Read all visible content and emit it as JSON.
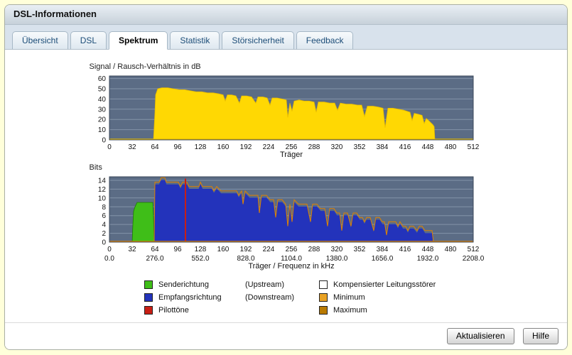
{
  "window": {
    "title": "DSL-Informationen"
  },
  "tabs": [
    {
      "label": "Übersicht",
      "active": false
    },
    {
      "label": "DSL",
      "active": false
    },
    {
      "label": "Spektrum",
      "active": true
    },
    {
      "label": "Statistik",
      "active": false
    },
    {
      "label": "Störsicherheit",
      "active": false
    },
    {
      "label": "Feedback",
      "active": false
    }
  ],
  "buttons": {
    "refresh": "Aktualisieren",
    "help": "Hilfe"
  },
  "legend": {
    "left": [
      {
        "color": "#3fbe18",
        "label": "Senderichtung",
        "sub": "(Upstream)"
      },
      {
        "color": "#2333bb",
        "label": "Empfangsrichtung",
        "sub": "(Downstream)"
      },
      {
        "color": "#c81e14",
        "label": "Pilottöne",
        "sub": ""
      }
    ],
    "right": [
      {
        "color": "#ffffff",
        "label": "Kompensierter Leitungsstörer"
      },
      {
        "color": "#e9a224",
        "label": "Minimum"
      },
      {
        "color": "#b97a00",
        "label": "Maximum"
      }
    ]
  },
  "colors": {
    "plot_background": "#5b6c85",
    "grid": "#8393a9",
    "snr_fill": "#ffd803",
    "snr_baseline": "#e8bb00",
    "upstream_fill": "#3fbe18",
    "downstream_fill": "#2333bb",
    "minmax_line": "#e08200",
    "pilot": "#c81e14"
  },
  "chart_data": [
    {
      "type": "area",
      "title": "Signal / Rausch-Verhältnis in dB",
      "xlabel": "Träger",
      "xlim": [
        0,
        512
      ],
      "xticks": [
        0,
        32,
        64,
        96,
        128,
        160,
        192,
        224,
        256,
        288,
        320,
        352,
        384,
        416,
        448,
        480,
        512
      ],
      "ylim": [
        0,
        60
      ],
      "yticks": [
        0,
        10,
        20,
        30,
        40,
        50,
        60
      ],
      "grid": "horizontal",
      "series": [
        {
          "name": "Signal/Rausch-Verhältnis",
          "color": "#ffd803",
          "stroke": "#e8bb00",
          "points": [
            [
              0,
              0
            ],
            [
              62,
              0
            ],
            [
              64,
              26
            ],
            [
              65,
              44
            ],
            [
              68,
              50
            ],
            [
              74,
              51
            ],
            [
              82,
              51
            ],
            [
              90,
              50
            ],
            [
              98,
              49
            ],
            [
              106,
              49
            ],
            [
              114,
              48
            ],
            [
              122,
              47
            ],
            [
              130,
              47
            ],
            [
              138,
              46
            ],
            [
              146,
              46
            ],
            [
              154,
              45
            ],
            [
              160,
              44
            ],
            [
              163,
              38
            ],
            [
              166,
              44
            ],
            [
              172,
              44
            ],
            [
              178,
              43
            ],
            [
              183,
              36
            ],
            [
              186,
              43
            ],
            [
              193,
              43
            ],
            [
              200,
              42
            ],
            [
              206,
              36
            ],
            [
              209,
              42
            ],
            [
              216,
              42
            ],
            [
              222,
              41
            ],
            [
              226,
              34
            ],
            [
              229,
              41
            ],
            [
              236,
              41
            ],
            [
              243,
              40
            ],
            [
              249,
              39
            ],
            [
              251,
              22
            ],
            [
              254,
              36
            ],
            [
              257,
              28
            ],
            [
              260,
              38
            ],
            [
              267,
              39
            ],
            [
              274,
              38
            ],
            [
              281,
              38
            ],
            [
              288,
              37
            ],
            [
              291,
              27
            ],
            [
              294,
              37
            ],
            [
              302,
              37
            ],
            [
              310,
              36
            ],
            [
              317,
              36
            ],
            [
              321,
              29
            ],
            [
              325,
              36
            ],
            [
              333,
              35
            ],
            [
              341,
              35
            ],
            [
              349,
              34
            ],
            [
              355,
              34
            ],
            [
              359,
              23
            ],
            [
              363,
              33
            ],
            [
              371,
              33
            ],
            [
              379,
              32
            ],
            [
              385,
              31
            ],
            [
              388,
              12
            ],
            [
              392,
              31
            ],
            [
              399,
              31
            ],
            [
              407,
              30
            ],
            [
              414,
              29
            ],
            [
              419,
              28
            ],
            [
              423,
              27
            ],
            [
              426,
              19
            ],
            [
              429,
              26
            ],
            [
              435,
              25
            ],
            [
              440,
              24
            ],
            [
              443,
              16
            ],
            [
              446,
              21
            ],
            [
              449,
              19
            ],
            [
              452,
              17
            ],
            [
              455,
              15
            ],
            [
              457,
              13
            ],
            [
              458,
              0
            ],
            [
              512,
              0
            ]
          ]
        }
      ]
    },
    {
      "type": "area",
      "title": "Bits",
      "xlabel": "Träger / Frequenz in kHz",
      "xlim": [
        0,
        512
      ],
      "xticks": [
        0,
        32,
        64,
        96,
        128,
        160,
        192,
        224,
        256,
        288,
        320,
        352,
        384,
        416,
        448,
        480,
        512
      ],
      "xticks2": [
        "0.0",
        "276.0",
        "552.0",
        "828.0",
        "1104.0",
        "1380.0",
        "1656.0",
        "1932.0",
        "2208.0"
      ],
      "ylim": [
        0,
        14
      ],
      "yticks": [
        0,
        2,
        4,
        6,
        8,
        10,
        12,
        14
      ],
      "grid": "horizontal",
      "series": [
        {
          "name": "Senderichtung (Upstream)",
          "color": "#3fbe18",
          "stroke": "#1e7a05",
          "points": [
            [
              32,
              0
            ],
            [
              33,
              4
            ],
            [
              34,
              7
            ],
            [
              36,
              8
            ],
            [
              39,
              9
            ],
            [
              45,
              9
            ],
            [
              52,
              9
            ],
            [
              58,
              9
            ],
            [
              61,
              9
            ],
            [
              62,
              6
            ],
            [
              63,
              0
            ]
          ]
        },
        {
          "name": "Empfangsrichtung (Downstream)",
          "color": "#2333bb",
          "stroke": "#2333bb",
          "points": [
            [
              0,
              0
            ],
            [
              63,
              0
            ],
            [
              64,
              13
            ],
            [
              70,
              13
            ],
            [
              73,
              14
            ],
            [
              78,
              14
            ],
            [
              80,
              13
            ],
            [
              90,
              13
            ],
            [
              97,
              13
            ],
            [
              100,
              12
            ],
            [
              103,
              13
            ],
            [
              109,
              13
            ],
            [
              112,
              12
            ],
            [
              120,
              12
            ],
            [
              126,
              12
            ],
            [
              128,
              13
            ],
            [
              131,
              12
            ],
            [
              138,
              12
            ],
            [
              144,
              12
            ],
            [
              147,
              11
            ],
            [
              151,
              12
            ],
            [
              157,
              11
            ],
            [
              165,
              11
            ],
            [
              172,
              11
            ],
            [
              179,
              11
            ],
            [
              182,
              10
            ],
            [
              186,
              11
            ],
            [
              188,
              8
            ],
            [
              191,
              11
            ],
            [
              197,
              10
            ],
            [
              203,
              10
            ],
            [
              209,
              10
            ],
            [
              211,
              6
            ],
            [
              214,
              10
            ],
            [
              221,
              10
            ],
            [
              226,
              9
            ],
            [
              231,
              9
            ],
            [
              234,
              5
            ],
            [
              237,
              9
            ],
            [
              243,
              9
            ],
            [
              248,
              8
            ],
            [
              251,
              3
            ],
            [
              254,
              8
            ],
            [
              257,
              4
            ],
            [
              260,
              9
            ],
            [
              266,
              8
            ],
            [
              272,
              8
            ],
            [
              278,
              8
            ],
            [
              283,
              4
            ],
            [
              286,
              8
            ],
            [
              292,
              8
            ],
            [
              297,
              7
            ],
            [
              303,
              7
            ],
            [
              307,
              3
            ],
            [
              310,
              7
            ],
            [
              316,
              7
            ],
            [
              320,
              6
            ],
            [
              324,
              6
            ],
            [
              327,
              2
            ],
            [
              330,
              6
            ],
            [
              335,
              6
            ],
            [
              340,
              3
            ],
            [
              343,
              6
            ],
            [
              348,
              6
            ],
            [
              352,
              5
            ],
            [
              356,
              5
            ],
            [
              359,
              4
            ],
            [
              362,
              5
            ],
            [
              367,
              5
            ],
            [
              372,
              2
            ],
            [
              375,
              5
            ],
            [
              380,
              5
            ],
            [
              384,
              4
            ],
            [
              387,
              4
            ],
            [
              390,
              1
            ],
            [
              393,
              4
            ],
            [
              398,
              4
            ],
            [
              403,
              4
            ],
            [
              406,
              3
            ],
            [
              409,
              4
            ],
            [
              413,
              3
            ],
            [
              417,
              3
            ],
            [
              420,
              2
            ],
            [
              423,
              3
            ],
            [
              428,
              3
            ],
            [
              433,
              2
            ],
            [
              436,
              3
            ],
            [
              440,
              3
            ],
            [
              444,
              2
            ],
            [
              449,
              2
            ],
            [
              454,
              2
            ],
            [
              456,
              0
            ],
            [
              512,
              0
            ]
          ]
        },
        {
          "name": "Maximum",
          "color": "#e08200",
          "derived_from": "Empfangsrichtung (Downstream)",
          "offset": 0.6
        }
      ],
      "pilot": {
        "name": "Pilottöne",
        "carrier": 107,
        "height": 14.4,
        "color": "#c81e14"
      }
    }
  ]
}
